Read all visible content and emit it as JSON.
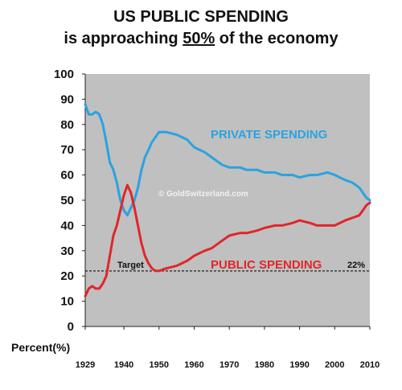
{
  "chart_data": {
    "type": "line",
    "title_line1": "US PUBLIC SPENDING",
    "title_line2_pre": "is approaching ",
    "title_line2_emph": "50%",
    "title_line2_post": " of the economy",
    "ylabel": "Percent(%)",
    "xlabel": "",
    "xlim": [
      1929,
      2010
    ],
    "ylim": [
      0,
      100
    ],
    "x_ticks": [
      1929,
      1940,
      1950,
      1960,
      1970,
      1980,
      1990,
      2000,
      2010
    ],
    "y_ticks": [
      0,
      10,
      20,
      30,
      40,
      50,
      60,
      70,
      80,
      90,
      100
    ],
    "grid": false,
    "background": "#c0c0c0",
    "watermark": "© GoldSwitzerland.com",
    "target": {
      "value": 22,
      "label": "Target",
      "value_label": "22%"
    },
    "series": [
      {
        "name": "PRIVATE SPENDING",
        "color": "#2aa3e0",
        "x": [
          1929,
          1930,
          1931,
          1932,
          1933,
          1934,
          1935,
          1936,
          1937,
          1938,
          1939,
          1940,
          1941,
          1942,
          1943,
          1944,
          1945,
          1946,
          1947,
          1948,
          1949,
          1950,
          1952,
          1955,
          1958,
          1960,
          1963,
          1965,
          1968,
          1970,
          1973,
          1975,
          1978,
          1980,
          1983,
          1985,
          1988,
          1990,
          1993,
          1995,
          1998,
          2000,
          2003,
          2005,
          2007,
          2008,
          2009,
          2010
        ],
        "values": [
          88,
          84,
          84,
          85,
          84,
          80,
          73,
          65,
          62,
          57,
          50,
          46,
          44,
          47,
          50,
          55,
          62,
          67,
          70,
          73,
          75,
          77,
          77,
          76,
          74,
          71,
          69,
          67,
          64,
          63,
          63,
          62,
          62,
          61,
          61,
          60,
          60,
          59,
          60,
          60,
          61,
          60,
          58,
          57,
          55,
          53,
          51,
          50
        ]
      },
      {
        "name": "PUBLIC SPENDING",
        "color": "#e0262b",
        "x": [
          1929,
          1930,
          1931,
          1932,
          1933,
          1934,
          1935,
          1936,
          1937,
          1938,
          1939,
          1940,
          1941,
          1942,
          1943,
          1944,
          1945,
          1946,
          1947,
          1948,
          1949,
          1950,
          1952,
          1955,
          1958,
          1960,
          1963,
          1965,
          1968,
          1970,
          1973,
          1975,
          1978,
          1980,
          1983,
          1985,
          1988,
          1990,
          1993,
          1995,
          1998,
          2000,
          2003,
          2005,
          2007,
          2008,
          2009,
          2010
        ],
        "values": [
          12,
          15,
          16,
          15,
          15,
          17,
          20,
          28,
          36,
          40,
          46,
          52,
          56,
          53,
          47,
          40,
          33,
          28,
          25,
          23,
          22,
          22,
          23,
          24,
          26,
          28,
          30,
          31,
          34,
          36,
          37,
          37,
          38,
          39,
          40,
          40,
          41,
          42,
          41,
          40,
          40,
          40,
          42,
          43,
          44,
          46,
          48,
          49
        ]
      }
    ]
  }
}
